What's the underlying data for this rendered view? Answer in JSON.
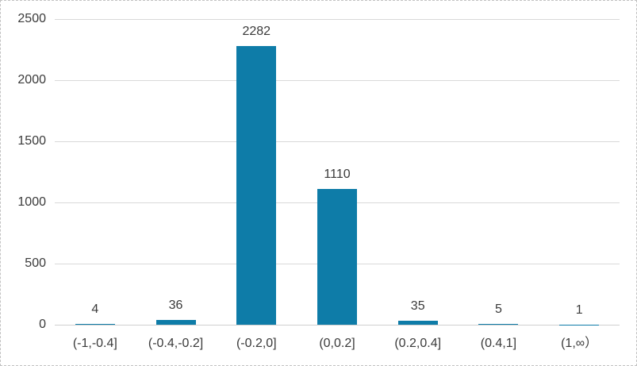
{
  "chart_data": {
    "type": "bar",
    "title": "",
    "xlabel": "",
    "ylabel": "",
    "categories": [
      "(-1,-0.4]",
      "(-0.4,-0.2]",
      "(-0.2,0]",
      "(0,0.2]",
      "(0.2,0.4]",
      "(0.4,1]",
      "(1,∞）"
    ],
    "values": [
      4,
      36,
      2282,
      1110,
      35,
      5,
      1
    ],
    "data_labels": [
      "4",
      "36",
      "2282",
      "1110",
      "35",
      "5",
      "1"
    ],
    "ylim": [
      0,
      2500
    ],
    "yticks": [
      0,
      500,
      1000,
      1500,
      2000,
      2500
    ],
    "grid": true,
    "legend": "none",
    "colors": {
      "bar": "#0e7ca8",
      "gridline": "#d9d9d9",
      "axis_line": "#cfcfcf",
      "label_text": "#3a3a3a",
      "background": "#ffffff",
      "border": "#c3c3c3"
    }
  }
}
